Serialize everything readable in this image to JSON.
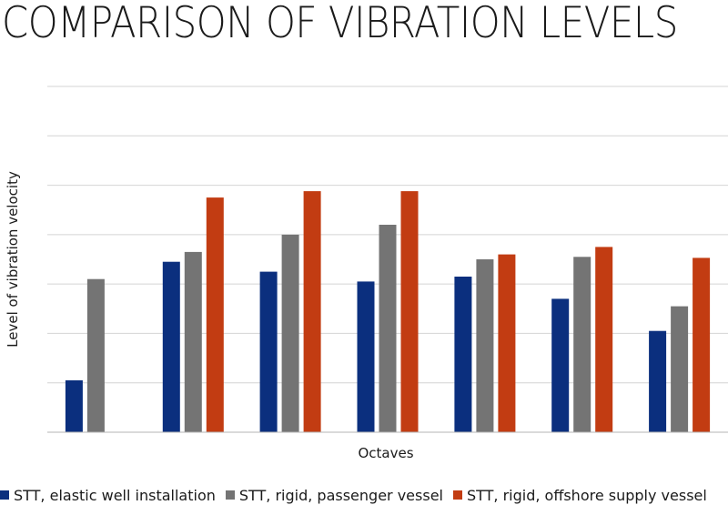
{
  "chart_data": {
    "type": "bar",
    "title": "COMPARISON OF VIBRATION LEVELS",
    "xlabel": "Octaves",
    "ylabel": "Level of vibration velocity",
    "categories": [
      "",
      "",
      "",
      "",
      "",
      "",
      ""
    ],
    "ylim": [
      0,
      7
    ],
    "grid": true,
    "legend": "bottom",
    "series": [
      {
        "name": "STT, elastic well installation",
        "color": "#0b2f7e",
        "values": [
          1.05,
          3.45,
          3.25,
          3.05,
          3.15,
          2.7,
          2.05
        ]
      },
      {
        "name": "STT, rigid, passenger vessel",
        "color": "#747474",
        "values": [
          3.1,
          3.65,
          4.0,
          4.2,
          3.5,
          3.55,
          2.55
        ]
      },
      {
        "name": "STT, rigid, offshore supply vessel",
        "color": "#c23c12",
        "values": [
          0,
          4.75,
          4.88,
          4.88,
          3.6,
          3.75,
          3.53
        ]
      }
    ]
  }
}
